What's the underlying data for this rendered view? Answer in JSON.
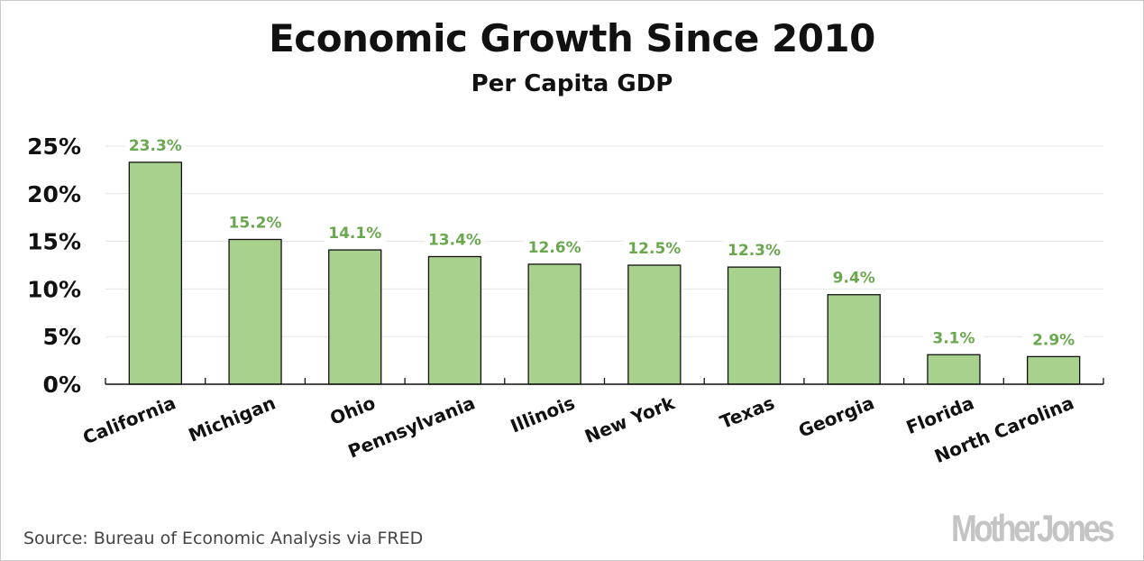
{
  "chart_data": {
    "type": "bar",
    "title": "Economic Growth Since 2010",
    "subtitle": "Per Capita GDP",
    "xlabel": "",
    "ylabel": "",
    "categories": [
      "California",
      "Michigan",
      "Ohio",
      "Pennsylvania",
      "Illinois",
      "New York",
      "Texas",
      "Georgia",
      "Florida",
      "North Carolina"
    ],
    "values": [
      23.3,
      15.2,
      14.1,
      13.4,
      12.6,
      12.5,
      12.3,
      9.4,
      3.1,
      2.9
    ],
    "data_labels": [
      "23.3%",
      "15.2%",
      "14.1%",
      "13.4%",
      "12.6%",
      "12.5%",
      "12.3%",
      "9.4%",
      "3.1%",
      "2.9%"
    ],
    "ylim": [
      0,
      25
    ],
    "yticks": [
      0,
      5,
      10,
      15,
      20,
      25
    ],
    "ytick_labels": [
      "0%",
      "5%",
      "10%",
      "15%",
      "20%",
      "25%"
    ],
    "grid": true,
    "colors": {
      "bar_fill": "#a9d18e",
      "bar_stroke": "#111111",
      "label": "#6aa84f",
      "grid": "#e4e4e4"
    }
  },
  "footer": {
    "source": "Source: Bureau of Economic Analysis via FRED",
    "logo": "MotherJones"
  }
}
